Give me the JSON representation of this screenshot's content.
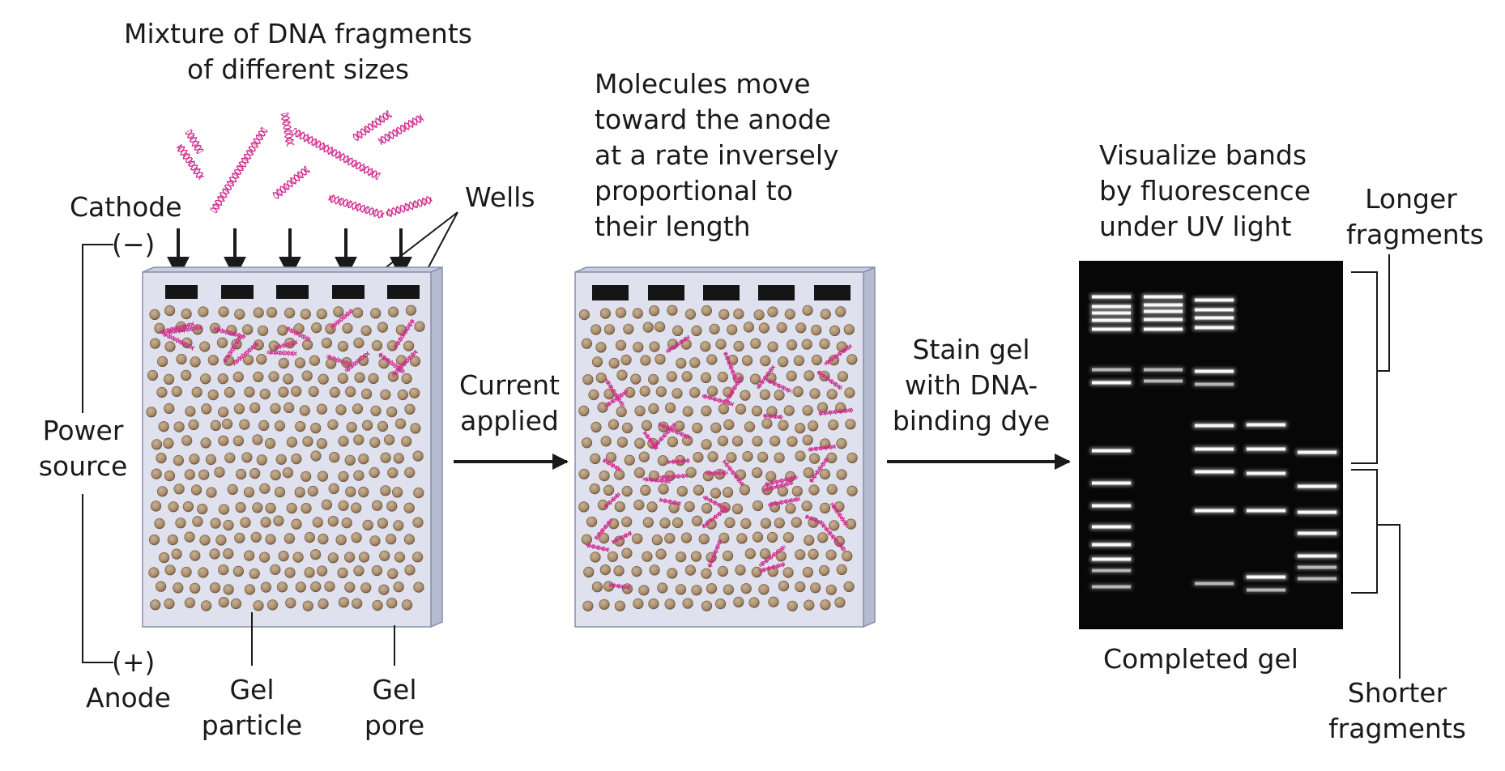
{
  "mixture_label": [
    "Mixture of DNA fragments",
    "of different sizes"
  ],
  "cathode_label": "Cathode",
  "cathode_sign": "(−)",
  "anode_label": "Anode",
  "anode_sign": "(+)",
  "wells_label": "Wells",
  "power_source_label": [
    "Power",
    "source"
  ],
  "gel_particle_label": [
    "Gel",
    "particle"
  ],
  "gel_pore_label": [
    "Gel",
    "pore"
  ],
  "current_applied_label": [
    "Current",
    "applied"
  ],
  "molecules_label": [
    "Molecules move",
    "toward the anode",
    "at a rate inversely",
    "proportional to",
    "their length"
  ],
  "stain_label": [
    "Stain gel",
    "with DNA-",
    "binding dye"
  ],
  "visualize_label": [
    "Visualize bands",
    "by fluorescence",
    "under UV light"
  ],
  "longer_label": [
    "Longer",
    "fragments"
  ],
  "shorter_label": [
    "Shorter",
    "fragments"
  ],
  "completed_label": "Completed gel",
  "colors": {
    "gel": "#dfe2ee",
    "gel_edge": "#9fa5bf",
    "particle": "#a88d6e",
    "particle_edge": "#6b5238",
    "dna": "#d12a8c",
    "well": "#151515",
    "photo_bg": "#070707",
    "band": "#ffffff",
    "arrow": "#1a1a1a"
  }
}
